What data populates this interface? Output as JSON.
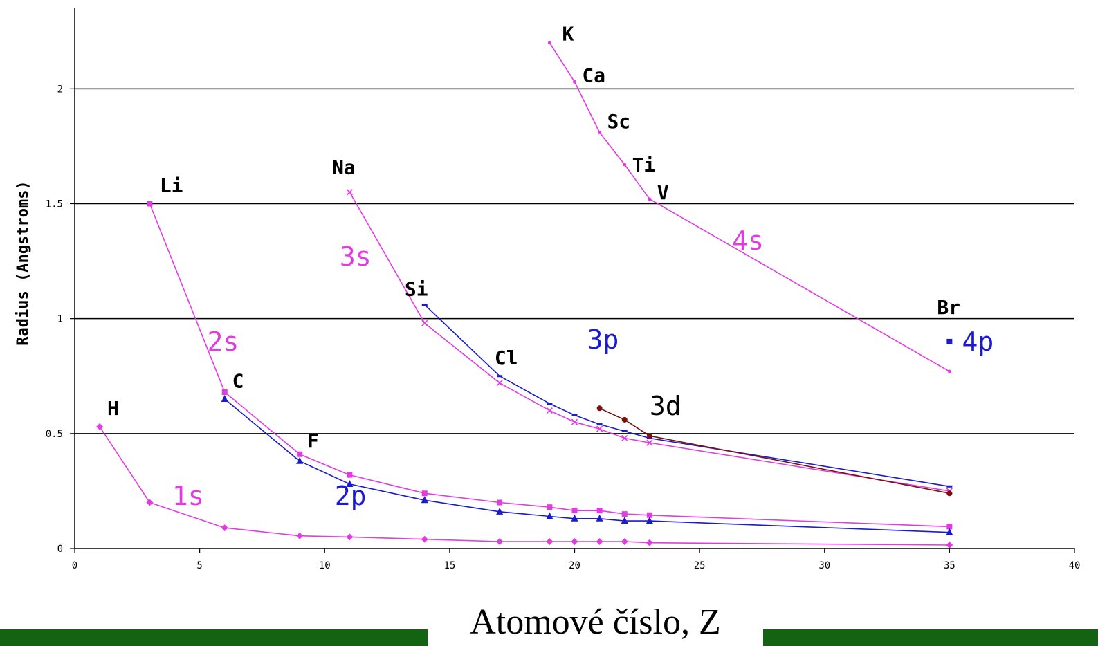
{
  "chart_data": {
    "type": "line",
    "title": "",
    "xlabel": "Atomové číslo, Z",
    "ylabel": "Radius (Angstroms)",
    "xlim": [
      0,
      40
    ],
    "ylim": [
      0,
      2.35
    ],
    "x_ticks": [
      0,
      5,
      10,
      15,
      20,
      25,
      30,
      35,
      40
    ],
    "y_ticks": [
      0,
      0.5,
      1,
      1.5,
      2
    ],
    "y_tick_labels": [
      "0",
      "0.5",
      "1",
      "1.5",
      "2"
    ],
    "horizontal_gridlines": [
      0.5,
      1,
      1.5,
      2
    ],
    "colors": {
      "s": "#e23be2",
      "p": "#1a1ad0",
      "d": "#7a1010",
      "text_s": "#e23be2",
      "text_p": "#1a1ad0",
      "text_d": "#000000",
      "green": "#136312"
    },
    "series": [
      {
        "name": "1s",
        "color": "#e23be2",
        "marker": "diamond",
        "x": [
          1,
          3,
          6,
          9,
          11,
          14,
          17,
          19,
          20,
          21,
          22,
          23,
          35
        ],
        "y": [
          0.53,
          0.2,
          0.09,
          0.055,
          0.05,
          0.04,
          0.03,
          0.03,
          0.03,
          0.03,
          0.03,
          0.025,
          0.015
        ]
      },
      {
        "name": "2s",
        "color": "#e23be2",
        "marker": "square",
        "x": [
          3,
          6,
          9,
          11,
          14,
          17,
          19,
          20,
          21,
          22,
          23,
          35
        ],
        "y": [
          1.5,
          0.68,
          0.41,
          0.32,
          0.24,
          0.2,
          0.18,
          0.165,
          0.165,
          0.15,
          0.145,
          0.095
        ]
      },
      {
        "name": "2p",
        "color": "#1a1ad0",
        "marker": "triangle",
        "x": [
          6,
          9,
          11,
          14,
          17,
          19,
          20,
          21,
          22,
          23,
          35
        ],
        "y": [
          0.65,
          0.38,
          0.28,
          0.21,
          0.16,
          0.14,
          0.13,
          0.13,
          0.12,
          0.12,
          0.07
        ]
      },
      {
        "name": "3s",
        "color": "#e23be2",
        "marker": "x",
        "x": [
          11,
          14,
          17,
          19,
          20,
          21,
          22,
          23,
          35
        ],
        "y": [
          1.55,
          0.98,
          0.72,
          0.6,
          0.55,
          0.52,
          0.48,
          0.46,
          0.25
        ]
      },
      {
        "name": "3p",
        "color": "#1a1ad0",
        "marker": "dash",
        "x": [
          14,
          17,
          19,
          20,
          21,
          22,
          23,
          35
        ],
        "y": [
          1.06,
          0.75,
          0.63,
          0.58,
          0.54,
          0.51,
          0.48,
          0.27
        ]
      },
      {
        "name": "3d",
        "color": "#7a1010",
        "marker": "circle",
        "x": [
          21,
          22,
          23,
          35
        ],
        "y": [
          0.61,
          0.56,
          0.49,
          0.24
        ]
      },
      {
        "name": "4s",
        "color": "#e23be2",
        "marker": "dot",
        "x": [
          19,
          20,
          21,
          22,
          23,
          35
        ],
        "y": [
          2.2,
          2.03,
          1.81,
          1.67,
          1.52,
          0.77
        ]
      },
      {
        "name": "4p",
        "color": "#1a1ad0",
        "marker": "square",
        "x": [
          35
        ],
        "y": [
          0.9
        ]
      }
    ],
    "element_labels": [
      {
        "text": "H",
        "x": 1.3,
        "y": 0.58
      },
      {
        "text": "Li",
        "x": 3.4,
        "y": 1.55
      },
      {
        "text": "C",
        "x": 6.3,
        "y": 0.7
      },
      {
        "text": "F",
        "x": 9.3,
        "y": 0.44
      },
      {
        "text": "Na",
        "x": 10.3,
        "y": 1.63
      },
      {
        "text": "Si",
        "x": 13.2,
        "y": 1.1
      },
      {
        "text": "Cl",
        "x": 16.8,
        "y": 0.8
      },
      {
        "text": "K",
        "x": 19.5,
        "y": 2.21
      },
      {
        "text": "Ca",
        "x": 20.3,
        "y": 2.03
      },
      {
        "text": "Sc",
        "x": 21.3,
        "y": 1.83
      },
      {
        "text": "Ti",
        "x": 22.3,
        "y": 1.64
      },
      {
        "text": "V",
        "x": 23.3,
        "y": 1.52
      },
      {
        "text": "Br",
        "x": 34.5,
        "y": 1.02
      }
    ],
    "orbital_labels": [
      {
        "text": "1s",
        "x": 3.9,
        "y": 0.19,
        "color": "#e23be2"
      },
      {
        "text": "2s",
        "x": 5.3,
        "y": 0.86,
        "color": "#e23be2"
      },
      {
        "text": "2p",
        "x": 10.4,
        "y": 0.19,
        "color": "#1a1ad0"
      },
      {
        "text": "3s",
        "x": 10.6,
        "y": 1.23,
        "color": "#e23be2"
      },
      {
        "text": "3p",
        "x": 20.5,
        "y": 0.87,
        "color": "#1a1ad0"
      },
      {
        "text": "3d",
        "x": 23.0,
        "y": 0.58,
        "color": "#000000"
      },
      {
        "text": "4s",
        "x": 26.3,
        "y": 1.3,
        "color": "#e23be2"
      },
      {
        "text": "4p",
        "x": 35.5,
        "y": 0.86,
        "color": "#1a1ad0"
      }
    ]
  }
}
